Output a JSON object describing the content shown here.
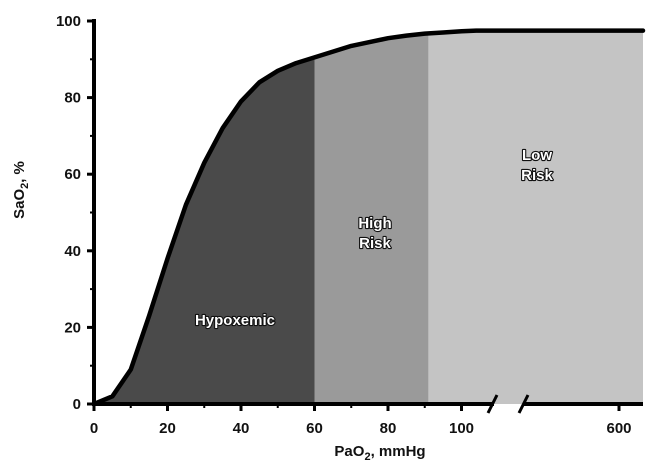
{
  "chart_data": {
    "type": "area",
    "title": "",
    "xlabel": {
      "prefix": "PaO",
      "sub": "2",
      "suffix": ", mmHg"
    },
    "ylabel": {
      "prefix": "SaO",
      "sub": "2",
      "suffix": ", %"
    },
    "ylim": [
      0,
      100
    ],
    "y_ticks": [
      "0",
      "20",
      "40",
      "60",
      "80",
      "100"
    ],
    "x_ticks": [
      "0",
      "20",
      "40",
      "60",
      "80",
      "100",
      "600"
    ],
    "x_axis_break": "between 100 and 600",
    "grid": false,
    "curve": {
      "x": [
        0,
        5,
        10,
        15,
        20,
        25,
        30,
        35,
        40,
        45,
        50,
        55,
        60,
        65,
        70,
        75,
        80,
        85,
        90,
        95,
        100,
        104,
        600
      ],
      "y": [
        0,
        2,
        9,
        23,
        38,
        52,
        63,
        72,
        79,
        84,
        87,
        89,
        90.5,
        92,
        93.5,
        94.5,
        95.5,
        96.2,
        96.7,
        97,
        97.3,
        97.5,
        97.5
      ]
    },
    "regions": [
      {
        "label_lines": [
          "Hypoxemic"
        ],
        "x_from": 0,
        "x_to": 60,
        "color": "#4a4a4a"
      },
      {
        "label_lines": [
          "High",
          "Risk"
        ],
        "x_from": 60,
        "x_to": 91,
        "color": "#9a9a9a"
      },
      {
        "label_lines": [
          "Low",
          "Risk"
        ],
        "x_from": 91,
        "x_to": 600,
        "color": "#c4c4c4"
      }
    ]
  }
}
